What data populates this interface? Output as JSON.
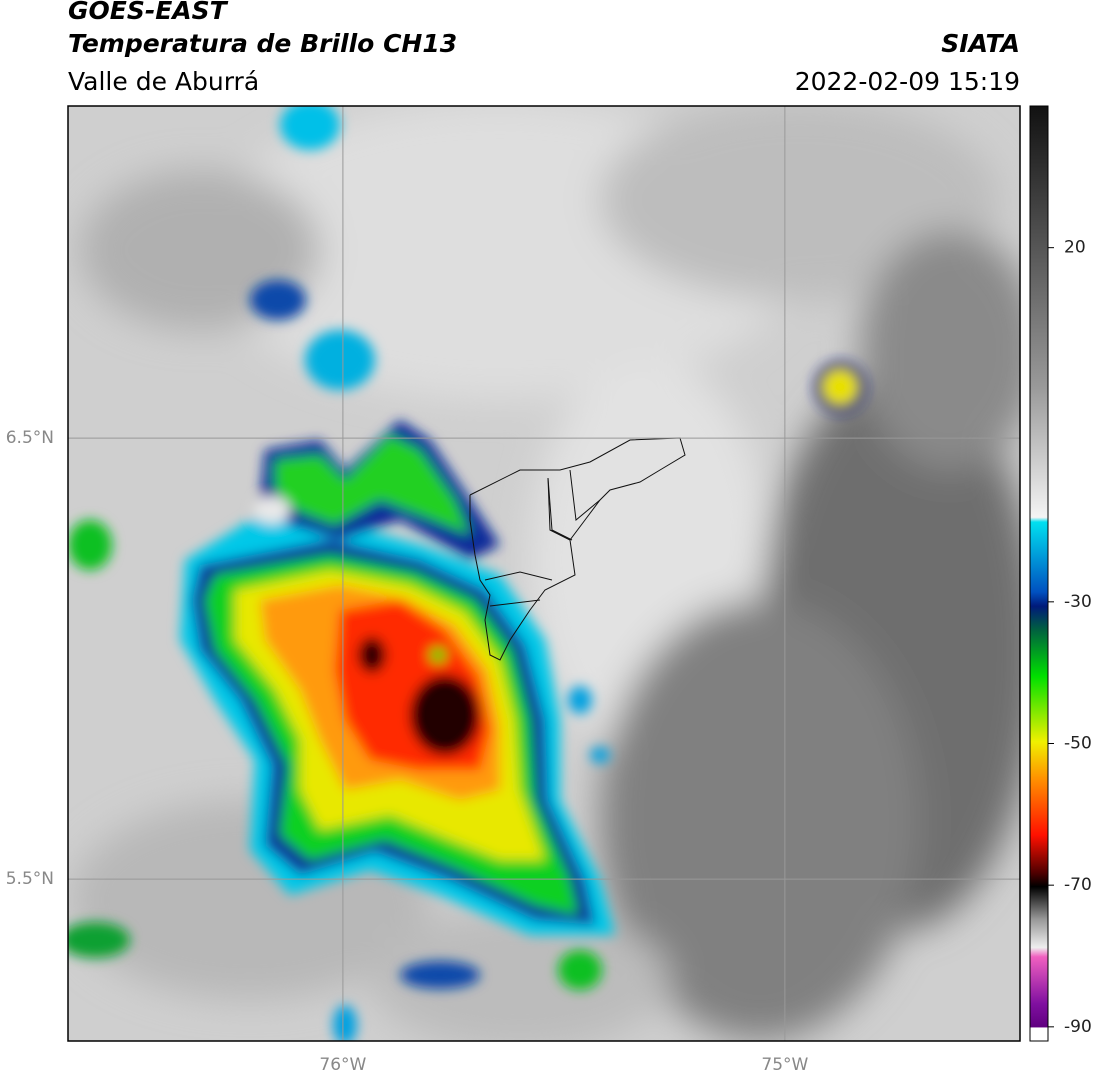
{
  "chart_data": {
    "type": "map",
    "title": "GOES-EAST",
    "subtitle": "Temperatura de Brillo CH13",
    "region": "Valle de Aburrá",
    "source": "SIATA",
    "datetime": "2022-02-09 15:19",
    "xlim": [
      -76.622,
      -74.468
    ],
    "ylim": [
      5.133,
      7.253
    ],
    "xticks": [
      {
        "value": -76,
        "label": "76°W"
      },
      {
        "value": -75,
        "label": "75°W"
      }
    ],
    "yticks": [
      {
        "value": 6.5,
        "label": "6.5°N"
      },
      {
        "value": 5.5,
        "label": "5.5°N"
      }
    ],
    "grid": true,
    "colorbar": {
      "lim": [
        -92,
        40
      ],
      "ticks": [
        20,
        -30,
        -50,
        -70,
        -90
      ]
    }
  }
}
